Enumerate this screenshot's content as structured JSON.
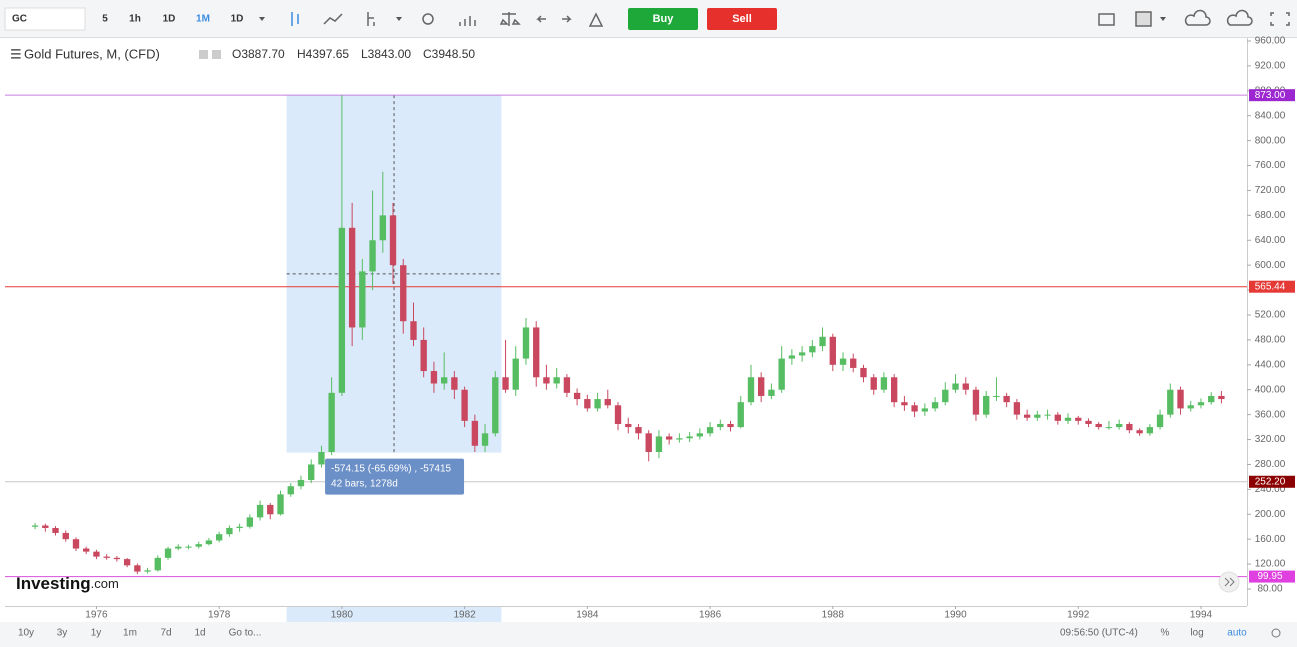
{
  "toolbar": {
    "symbol": "GC",
    "intervals": [
      "5",
      "1h",
      "1D",
      "1M",
      "1D"
    ],
    "buy": "Buy",
    "sell": "Sell"
  },
  "legend": {
    "title": "Gold Futures, M, (CFD)",
    "open": "O3887.70",
    "high": "H4397.65",
    "low": "L3843.00",
    "close": "C3948.50"
  },
  "logo": [
    "Investing",
    ".com"
  ],
  "footer": {
    "ranges": [
      "10y",
      "3y",
      "1y",
      "1m",
      "7d",
      "1d",
      "Go to..."
    ],
    "time": "09:56:50 (UTC-4)",
    "percent": "%",
    "log": "log",
    "auto": "auto"
  },
  "chart_data": {
    "type": "candlestick",
    "up_color": "#56bd62",
    "down_color": "#c9485f",
    "xlim": [
      1974.51,
      1994.75
    ],
    "ylim": [
      52.7,
      964.8
    ],
    "xticks": [
      1976,
      1978,
      1980,
      1982,
      1984,
      1986,
      1988,
      1990,
      1992,
      1994
    ],
    "yticks": [
      {
        "value": 80,
        "label": "80.00"
      },
      {
        "value": 120,
        "label": "120.00"
      },
      {
        "value": 160,
        "label": "160.00"
      },
      {
        "value": 200,
        "label": "200.00"
      },
      {
        "value": 240,
        "label": "240.00"
      },
      {
        "value": 280,
        "label": "280.00"
      },
      {
        "value": 320,
        "label": "320.00"
      },
      {
        "value": 360,
        "label": "360.00"
      },
      {
        "value": 400,
        "label": "400.00"
      },
      {
        "value": 440,
        "label": "440.00"
      },
      {
        "value": 480,
        "label": "480.00"
      },
      {
        "value": 520,
        "label": "520.00"
      },
      {
        "value": 560,
        "label": "560.00"
      },
      {
        "value": 600,
        "label": "600.00"
      },
      {
        "value": 640,
        "label": "640.00"
      },
      {
        "value": 680,
        "label": "680.00"
      },
      {
        "value": 720,
        "label": "720.00"
      },
      {
        "value": 760,
        "label": "760.00"
      },
      {
        "value": 800,
        "label": "800.00"
      },
      {
        "value": 840,
        "label": "840.00"
      },
      {
        "value": 880,
        "label": "880.00"
      },
      {
        "value": 920,
        "label": "920.00"
      },
      {
        "value": 960,
        "label": "960.00"
      }
    ],
    "levels": [
      {
        "value": 873,
        "label": "873.00",
        "color": "#9c27d0",
        "line_color": "#c77fe0"
      },
      {
        "value": 565.44,
        "label": "565.44",
        "color": "#e53935",
        "line_color": "#e53935"
      },
      {
        "value": 252.2,
        "label": "252.20",
        "color": "#8b0000",
        "line_color": "#c8c8c8"
      },
      {
        "value": 99.95,
        "label": "99.95",
        "color": "#e040e0",
        "line_color": "#d84fd8"
      }
    ],
    "measure": {
      "x_range": [
        1979.1,
        1982.6
      ],
      "y_range": [
        873,
        299
      ],
      "lines": [
        "-574.15 (-65.69%) , -57415",
        "42 bars, 1278d"
      ]
    },
    "x": [
      1975,
      1975.167,
      1975.333,
      1975.5,
      1975.667,
      1975.833,
      1976,
      1976.167,
      1976.333,
      1976.5,
      1976.667,
      1976.833,
      1977,
      1977.167,
      1977.333,
      1977.5,
      1977.667,
      1977.833,
      1978,
      1978.167,
      1978.333,
      1978.5,
      1978.667,
      1978.833,
      1979,
      1979.167,
      1979.333,
      1979.5,
      1979.667,
      1979.833,
      1980,
      1980.167,
      1980.333,
      1980.5,
      1980.667,
      1980.833,
      1981,
      1981.167,
      1981.333,
      1981.5,
      1981.667,
      1981.833,
      1982,
      1982.167,
      1982.333,
      1982.5,
      1982.667,
      1982.833,
      1983,
      1983.167,
      1983.333,
      1983.5,
      1983.667,
      1983.833,
      1984,
      1984.167,
      1984.333,
      1984.5,
      1984.667,
      1984.833,
      1985,
      1985.167,
      1985.333,
      1985.5,
      1985.667,
      1985.833,
      1986,
      1986.167,
      1986.333,
      1986.5,
      1986.667,
      1986.833,
      1987,
      1987.167,
      1987.333,
      1987.5,
      1987.667,
      1987.833,
      1988,
      1988.167,
      1988.333,
      1988.5,
      1988.667,
      1988.833,
      1989,
      1989.167,
      1989.333,
      1989.5,
      1989.667,
      1989.833,
      1990,
      1990.167,
      1990.333,
      1990.5,
      1990.667,
      1990.833,
      1991,
      1991.167,
      1991.333,
      1991.5,
      1991.667,
      1991.833,
      1992,
      1992.167,
      1992.333,
      1992.5,
      1992.667,
      1992.833,
      1993,
      1993.167,
      1993.333,
      1993.5,
      1993.667,
      1993.833,
      1994,
      1994.167,
      1994.333
    ],
    "ohlc": [
      [
        180,
        186,
        176,
        182
      ],
      [
        182,
        185,
        172,
        178
      ],
      [
        178,
        181,
        166,
        170
      ],
      [
        170,
        174,
        156,
        160
      ],
      [
        160,
        163,
        141,
        145
      ],
      [
        145,
        148,
        136,
        140
      ],
      [
        140,
        143,
        128,
        132
      ],
      [
        132,
        136,
        127,
        130
      ],
      [
        130,
        133,
        124,
        128
      ],
      [
        128,
        130,
        115,
        118
      ],
      [
        118,
        121,
        104,
        108
      ],
      [
        108,
        114,
        105,
        110
      ],
      [
        110,
        134,
        108,
        130
      ],
      [
        130,
        148,
        127,
        145
      ],
      [
        145,
        152,
        142,
        148
      ],
      [
        148,
        151,
        144,
        148
      ],
      [
        148,
        156,
        145,
        152
      ],
      [
        152,
        162,
        150,
        158
      ],
      [
        158,
        172,
        155,
        168
      ],
      [
        168,
        182,
        164,
        178
      ],
      [
        178,
        185,
        172,
        180
      ],
      [
        180,
        200,
        177,
        195
      ],
      [
        195,
        222,
        190,
        215
      ],
      [
        215,
        218,
        192,
        200
      ],
      [
        200,
        238,
        198,
        232
      ],
      [
        232,
        250,
        228,
        245
      ],
      [
        245,
        262,
        240,
        255
      ],
      [
        255,
        288,
        250,
        280
      ],
      [
        280,
        310,
        275,
        300
      ],
      [
        300,
        420,
        295,
        395
      ],
      [
        395,
        873,
        390,
        660
      ],
      [
        660,
        700,
        470,
        500
      ],
      [
        500,
        610,
        480,
        590
      ],
      [
        590,
        720,
        560,
        640
      ],
      [
        640,
        750,
        620,
        680
      ],
      [
        680,
        700,
        570,
        600
      ],
      [
        600,
        610,
        490,
        510
      ],
      [
        510,
        540,
        470,
        480
      ],
      [
        480,
        500,
        420,
        430
      ],
      [
        430,
        445,
        395,
        410
      ],
      [
        410,
        460,
        400,
        420
      ],
      [
        420,
        430,
        385,
        400
      ],
      [
        400,
        405,
        340,
        350
      ],
      [
        350,
        360,
        300,
        310
      ],
      [
        310,
        345,
        300,
        330
      ],
      [
        330,
        430,
        325,
        420
      ],
      [
        420,
        480,
        395,
        400
      ],
      [
        400,
        470,
        390,
        450
      ],
      [
        450,
        515,
        440,
        500
      ],
      [
        500,
        510,
        405,
        420
      ],
      [
        420,
        440,
        400,
        410
      ],
      [
        410,
        435,
        402,
        420
      ],
      [
        420,
        425,
        388,
        395
      ],
      [
        395,
        402,
        375,
        385
      ],
      [
        385,
        392,
        365,
        370
      ],
      [
        370,
        395,
        365,
        385
      ],
      [
        385,
        400,
        370,
        375
      ],
      [
        375,
        380,
        335,
        345
      ],
      [
        345,
        355,
        330,
        340
      ],
      [
        340,
        345,
        320,
        330
      ],
      [
        330,
        335,
        285,
        300
      ],
      [
        300,
        335,
        290,
        325
      ],
      [
        325,
        330,
        312,
        320
      ],
      [
        320,
        330,
        315,
        322
      ],
      [
        322,
        332,
        316,
        325
      ],
      [
        325,
        338,
        320,
        330
      ],
      [
        330,
        348,
        325,
        340
      ],
      [
        340,
        352,
        335,
        345
      ],
      [
        345,
        350,
        333,
        340
      ],
      [
        340,
        390,
        338,
        380
      ],
      [
        380,
        440,
        375,
        420
      ],
      [
        420,
        428,
        380,
        390
      ],
      [
        390,
        410,
        385,
        400
      ],
      [
        400,
        470,
        395,
        450
      ],
      [
        450,
        465,
        440,
        455
      ],
      [
        455,
        470,
        445,
        460
      ],
      [
        460,
        480,
        452,
        470
      ],
      [
        470,
        500,
        462,
        485
      ],
      [
        485,
        490,
        430,
        440
      ],
      [
        440,
        460,
        430,
        450
      ],
      [
        450,
        458,
        428,
        435
      ],
      [
        435,
        440,
        412,
        420
      ],
      [
        420,
        425,
        392,
        400
      ],
      [
        400,
        428,
        395,
        420
      ],
      [
        420,
        425,
        372,
        380
      ],
      [
        380,
        390,
        366,
        375
      ],
      [
        375,
        380,
        356,
        365
      ],
      [
        365,
        378,
        358,
        370
      ],
      [
        370,
        388,
        365,
        380
      ],
      [
        380,
        412,
        375,
        400
      ],
      [
        400,
        425,
        395,
        410
      ],
      [
        410,
        420,
        392,
        400
      ],
      [
        400,
        405,
        350,
        360
      ],
      [
        360,
        398,
        355,
        390
      ],
      [
        390,
        420,
        382,
        390
      ],
      [
        390,
        395,
        372,
        380
      ],
      [
        380,
        385,
        352,
        360
      ],
      [
        360,
        368,
        350,
        355
      ],
      [
        355,
        366,
        350,
        360
      ],
      [
        360,
        368,
        352,
        360
      ],
      [
        360,
        364,
        344,
        350
      ],
      [
        350,
        362,
        345,
        355
      ],
      [
        355,
        358,
        344,
        350
      ],
      [
        350,
        354,
        340,
        345
      ],
      [
        345,
        348,
        336,
        340
      ],
      [
        340,
        350,
        336,
        340
      ],
      [
        340,
        352,
        336,
        345
      ],
      [
        345,
        348,
        330,
        335
      ],
      [
        335,
        338,
        326,
        330
      ],
      [
        330,
        345,
        326,
        340
      ],
      [
        340,
        368,
        336,
        360
      ],
      [
        360,
        410,
        355,
        400
      ],
      [
        400,
        405,
        360,
        370
      ],
      [
        370,
        382,
        365,
        375
      ],
      [
        375,
        386,
        370,
        380
      ],
      [
        380,
        396,
        376,
        390
      ],
      [
        390,
        398,
        378,
        385
      ]
    ]
  }
}
